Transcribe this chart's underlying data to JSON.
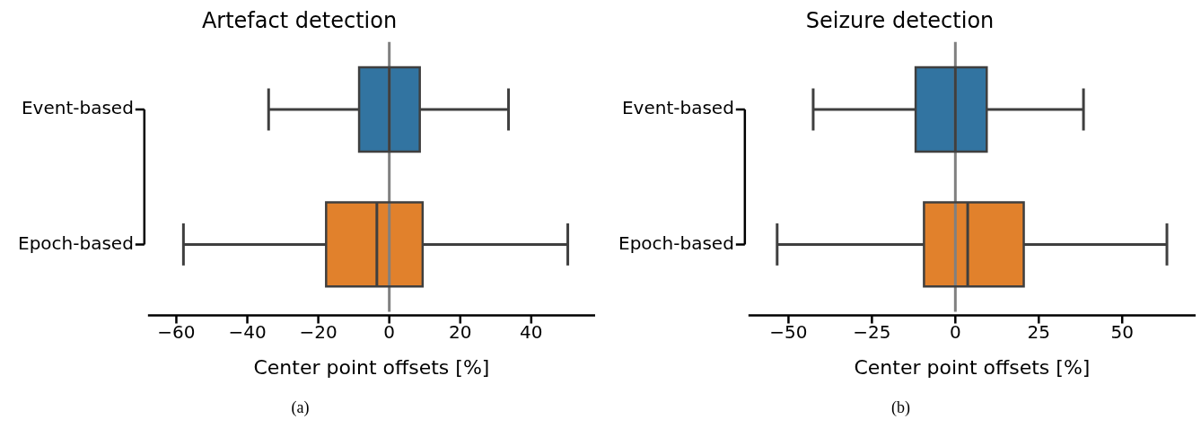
{
  "chart_data": [
    {
      "type": "box",
      "title": "Artefact detection",
      "xlabel": "Center point offsets [%]",
      "orientation": "horizontal",
      "categories": [
        "Event-based",
        "Epoch-based"
      ],
      "colors": [
        "#3274a1",
        "#e1812c"
      ],
      "boxes": [
        {
          "low": -34,
          "q1": -8.5,
          "median": 0,
          "q3": 8.6,
          "high": 33.6
        },
        {
          "low": -58,
          "q1": -17.8,
          "median": -3.5,
          "q3": 9.4,
          "high": 50.3
        }
      ],
      "xlim": [
        -68,
        58
      ],
      "xticks": [
        {
          "value": -60,
          "label": "−60"
        },
        {
          "value": -40,
          "label": "−40"
        },
        {
          "value": -20,
          "label": "−20"
        },
        0,
        20,
        40
      ],
      "ref_lines": [
        {
          "axis": "x",
          "value": 0,
          "color": "#808080"
        }
      ],
      "annotations": [
        "(a)"
      ],
      "grid": false,
      "legend": false
    },
    {
      "type": "box",
      "title": "Seizure detection",
      "xlabel": "Center point offsets [%]",
      "orientation": "horizontal",
      "categories": [
        "Event-based",
        "Epoch-based"
      ],
      "colors": [
        "#3274a1",
        "#e1812c"
      ],
      "boxes": [
        {
          "low": -42.6,
          "q1": -11.9,
          "median": 0,
          "q3": 9.4,
          "high": 38.4
        },
        {
          "low": -53.4,
          "q1": -9.4,
          "median": 3.7,
          "q3": 20.5,
          "high": 63.4
        }
      ],
      "xlim": [
        -62,
        72
      ],
      "xticks": [
        {
          "value": -50,
          "label": "−50"
        },
        {
          "value": -25,
          "label": "−25"
        },
        0,
        25,
        50
      ],
      "ref_lines": [
        {
          "axis": "x",
          "value": 0,
          "color": "#808080"
        }
      ],
      "annotations": [
        "(b)"
      ],
      "grid": false,
      "legend": false
    }
  ]
}
